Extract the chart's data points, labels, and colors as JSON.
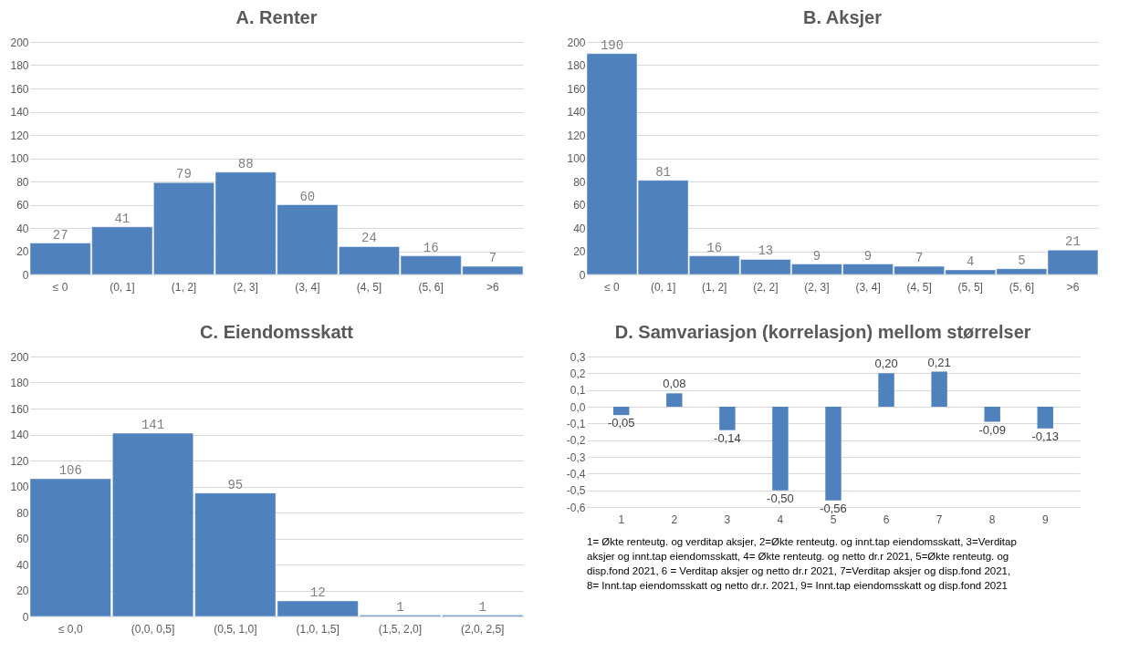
{
  "chart_data": [
    {
      "type": "bar",
      "title": "A. Renter",
      "categories": [
        "≤ 0",
        "(0, 1]",
        "(1, 2]",
        "(2, 3]",
        "(3, 4]",
        "(4, 5]",
        "(5, 6]",
        ">6"
      ],
      "values": [
        27,
        41,
        79,
        88,
        60,
        24,
        16,
        7
      ],
      "color": "#4f81bd",
      "ylim": [
        0,
        200
      ],
      "yticks": [
        0,
        20,
        40,
        60,
        80,
        100,
        120,
        140,
        160,
        180,
        200
      ],
      "grid": "y",
      "data_labels": true
    },
    {
      "type": "bar",
      "title": "B. Aksjer",
      "categories": [
        "≤ 0",
        "(0, 1]",
        "(1, 2]",
        "(2, 2]",
        "(2, 3]",
        "(3, 4]",
        "(4, 5]",
        "(5, 5]",
        "(5, 6]",
        ">6"
      ],
      "values": [
        190,
        81,
        16,
        13,
        9,
        9,
        7,
        4,
        5,
        21
      ],
      "color": "#4f81bd",
      "ylim": [
        0,
        200
      ],
      "yticks": [
        0,
        20,
        40,
        60,
        80,
        100,
        120,
        140,
        160,
        180,
        200
      ],
      "grid": "y",
      "data_labels": true
    },
    {
      "type": "bar",
      "title": "C. Eiendomsskatt",
      "categories": [
        "≤ 0,0",
        "(0,0, 0,5]",
        "(0,5, 1,0]",
        "(1,0, 1,5]",
        "(1,5, 2,0]",
        "(2,0, 2,5]"
      ],
      "values": [
        106,
        141,
        95,
        12,
        1,
        1
      ],
      "color": "#4f81bd",
      "ylim": [
        0,
        200
      ],
      "yticks": [
        0,
        20,
        40,
        60,
        80,
        100,
        120,
        140,
        160,
        180,
        200
      ],
      "grid": "y",
      "data_labels": true
    },
    {
      "type": "bar",
      "title": "D. Samvariasjon (korrelasjon) mellom størrelser",
      "categories": [
        "1",
        "2",
        "3",
        "4",
        "5",
        "6",
        "7",
        "8",
        "9"
      ],
      "values": [
        -0.05,
        0.08,
        -0.14,
        -0.5,
        -0.56,
        0.2,
        0.21,
        -0.09,
        -0.13
      ],
      "color": "#4f81bd",
      "ylim": [
        -0.6,
        0.3
      ],
      "yticks": [
        {
          "value": -0.6,
          "label": "-0,6"
        },
        {
          "value": -0.5,
          "label": "-0,5"
        },
        {
          "value": -0.4,
          "label": "-0,4"
        },
        {
          "value": -0.3,
          "label": "-0,3"
        },
        {
          "value": -0.2,
          "label": "-0,2"
        },
        {
          "value": -0.1,
          "label": "-0,1"
        },
        {
          "value": 0,
          "label": "0,0"
        },
        {
          "value": 0.1,
          "label": "0,1"
        },
        {
          "value": 0.2,
          "label": "0,2"
        },
        {
          "value": 0.3,
          "label": "0,3"
        }
      ],
      "grid": "y",
      "value_labels": [
        "-0,05",
        "0,08",
        "-0,14",
        "-0,50",
        "-0,56",
        "0,20",
        "0,21",
        "-0,09",
        "-0,13"
      ],
      "annotations": [
        "1= Økte renteutg. og verditap aksjer, 2=Økte renteutg. og innt.tap eiendomsskatt, 3=Verditap aksjer og innt.tap eiendomsskatt, 4= Økte renteutg. og netto dr.r 2021, 5=Økte renteutg. og disp.fond 2021, 6 = Verditap aksjer og netto dr.r 2021, 7=Verditap aksjer og disp.fond 2021, 8= Innt.tap eiendomsskatt og netto dr.r. 2021, 9= Innt.tap eiendomsskatt og disp.fond 2021"
      ]
    }
  ]
}
